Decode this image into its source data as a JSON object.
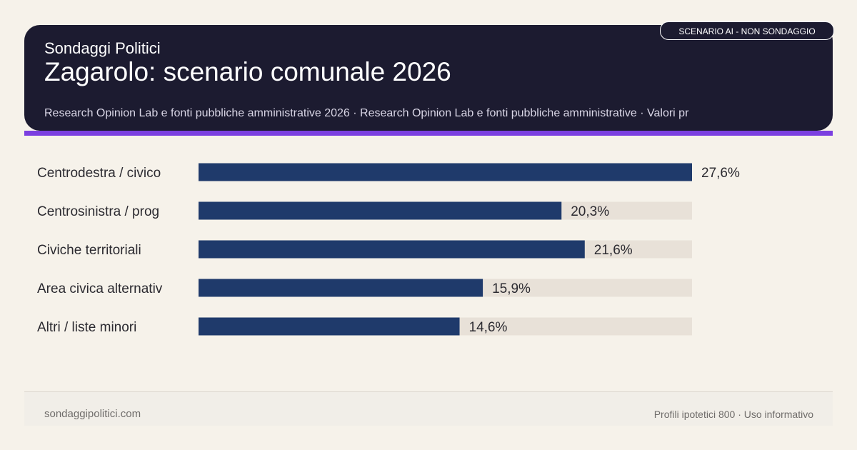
{
  "header": {
    "brand": "Sondaggi Politici",
    "title": "Zagarolo: scenario comunale 2026",
    "subtitle": "Research Opinion Lab e fonti pubbliche amministrative 2026 · Research Opinion Lab e fonti pubbliche amministrative · Valori pr",
    "badge": "SCENARIO AI - NON SONDAGGIO"
  },
  "footer": {
    "left": "sondaggipolitici.com",
    "right": "Profili ipotetici 800 · Uso informativo"
  },
  "colors": {
    "bar": "#1f3a6b",
    "track": "#e8e1d8",
    "header_bg": "#1c1b30",
    "accent": "#7b3fe0"
  },
  "chart_data": {
    "type": "bar",
    "orientation": "horizontal",
    "categories": [
      "Centrodestra / civico",
      "Centrosinistra / prog",
      "Civiche territoriali",
      "Area civica alternativ",
      "Altri / liste minori"
    ],
    "values": [
      27.6,
      20.3,
      21.6,
      15.9,
      14.6
    ],
    "labels": [
      "27,6%",
      "20,3%",
      "21,6%",
      "15,9%",
      "14,6%"
    ],
    "xlim": [
      0,
      27.6
    ],
    "grid": false
  }
}
